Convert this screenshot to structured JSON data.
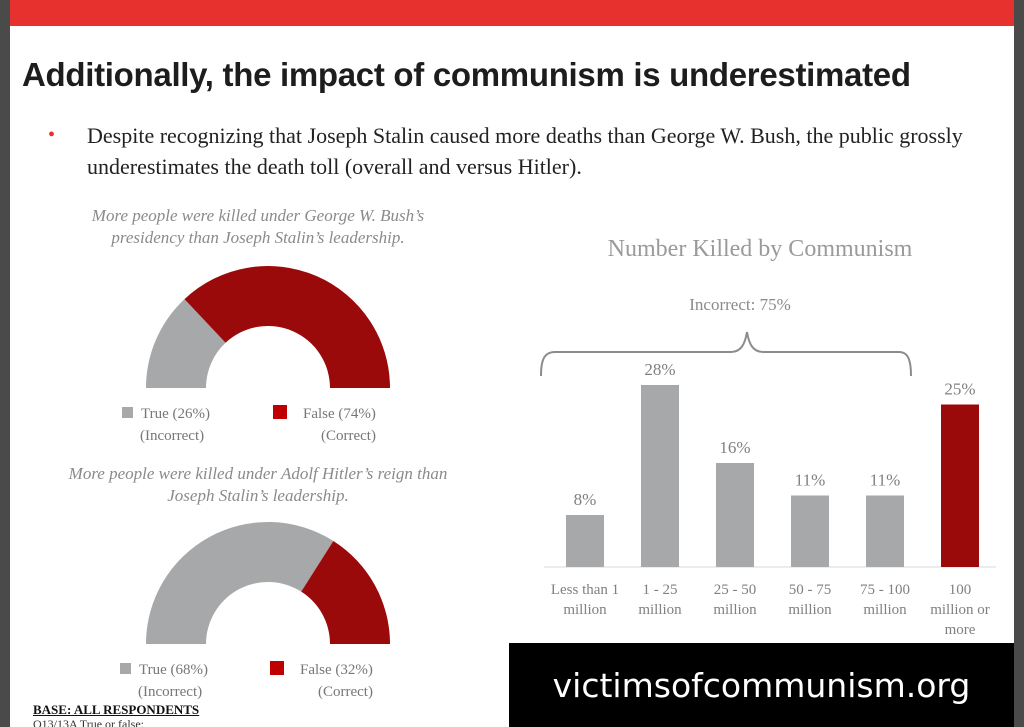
{
  "title": "Additionally, the impact of communism is underestimated",
  "bullet": "Despite recognizing that Joseph Stalin caused more deaths than George W. Bush, the public grossly underestimates the death toll (overall and versus Hitler).",
  "colors": {
    "red_bar": "#e7312f",
    "true_gray": "#a6a8aa",
    "false_red": "#9a0a0a"
  },
  "watermark": "victimsofcommunism.org",
  "base_label": "BASE: ALL RESPONDENTS",
  "question_label": "Q13/13A True or false:",
  "chart_data": [
    {
      "type": "pie",
      "variant": "half-donut",
      "title": "More people were killed under George W. Bush’s presidency than Joseph Stalin’s leadership.",
      "slices": [
        {
          "label": "True (26%)",
          "sublabel": "(Incorrect)",
          "value": 26,
          "color": "#a6a8aa"
        },
        {
          "label": "False (74%)",
          "sublabel": "(Correct)",
          "value": 74,
          "color": "#9a0a0a"
        }
      ]
    },
    {
      "type": "pie",
      "variant": "half-donut",
      "title": "More people were killed under Adolf Hitler’s reign than Joseph Stalin’s leadership.",
      "slices": [
        {
          "label": "True (68%)",
          "sublabel": "(Incorrect)",
          "value": 68,
          "color": "#a6a8aa"
        },
        {
          "label": "False (32%)",
          "sublabel": "(Correct)",
          "value": 32,
          "color": "#9a0a0a"
        }
      ]
    },
    {
      "type": "bar",
      "title": "Number Killed by Communism",
      "annotation": "Incorrect: 75%",
      "categories": [
        [
          "Less than 1",
          "million"
        ],
        [
          "1 - 25",
          "million"
        ],
        [
          "25 - 50",
          "million"
        ],
        [
          "50 - 75",
          "million"
        ],
        [
          "75 - 100",
          "million"
        ],
        [
          "100",
          "million or",
          "more"
        ]
      ],
      "values": [
        8,
        28,
        16,
        11,
        11,
        25
      ],
      "data_labels": [
        "8%",
        "28%",
        "16%",
        "11%",
        "11%",
        "25%"
      ],
      "bar_colors": [
        "#a6a8aa",
        "#a6a8aa",
        "#a6a8aa",
        "#a6a8aa",
        "#a6a8aa",
        "#9a0a0a"
      ],
      "ylim": [
        0,
        30
      ],
      "xlabel": "",
      "ylabel": ""
    }
  ]
}
